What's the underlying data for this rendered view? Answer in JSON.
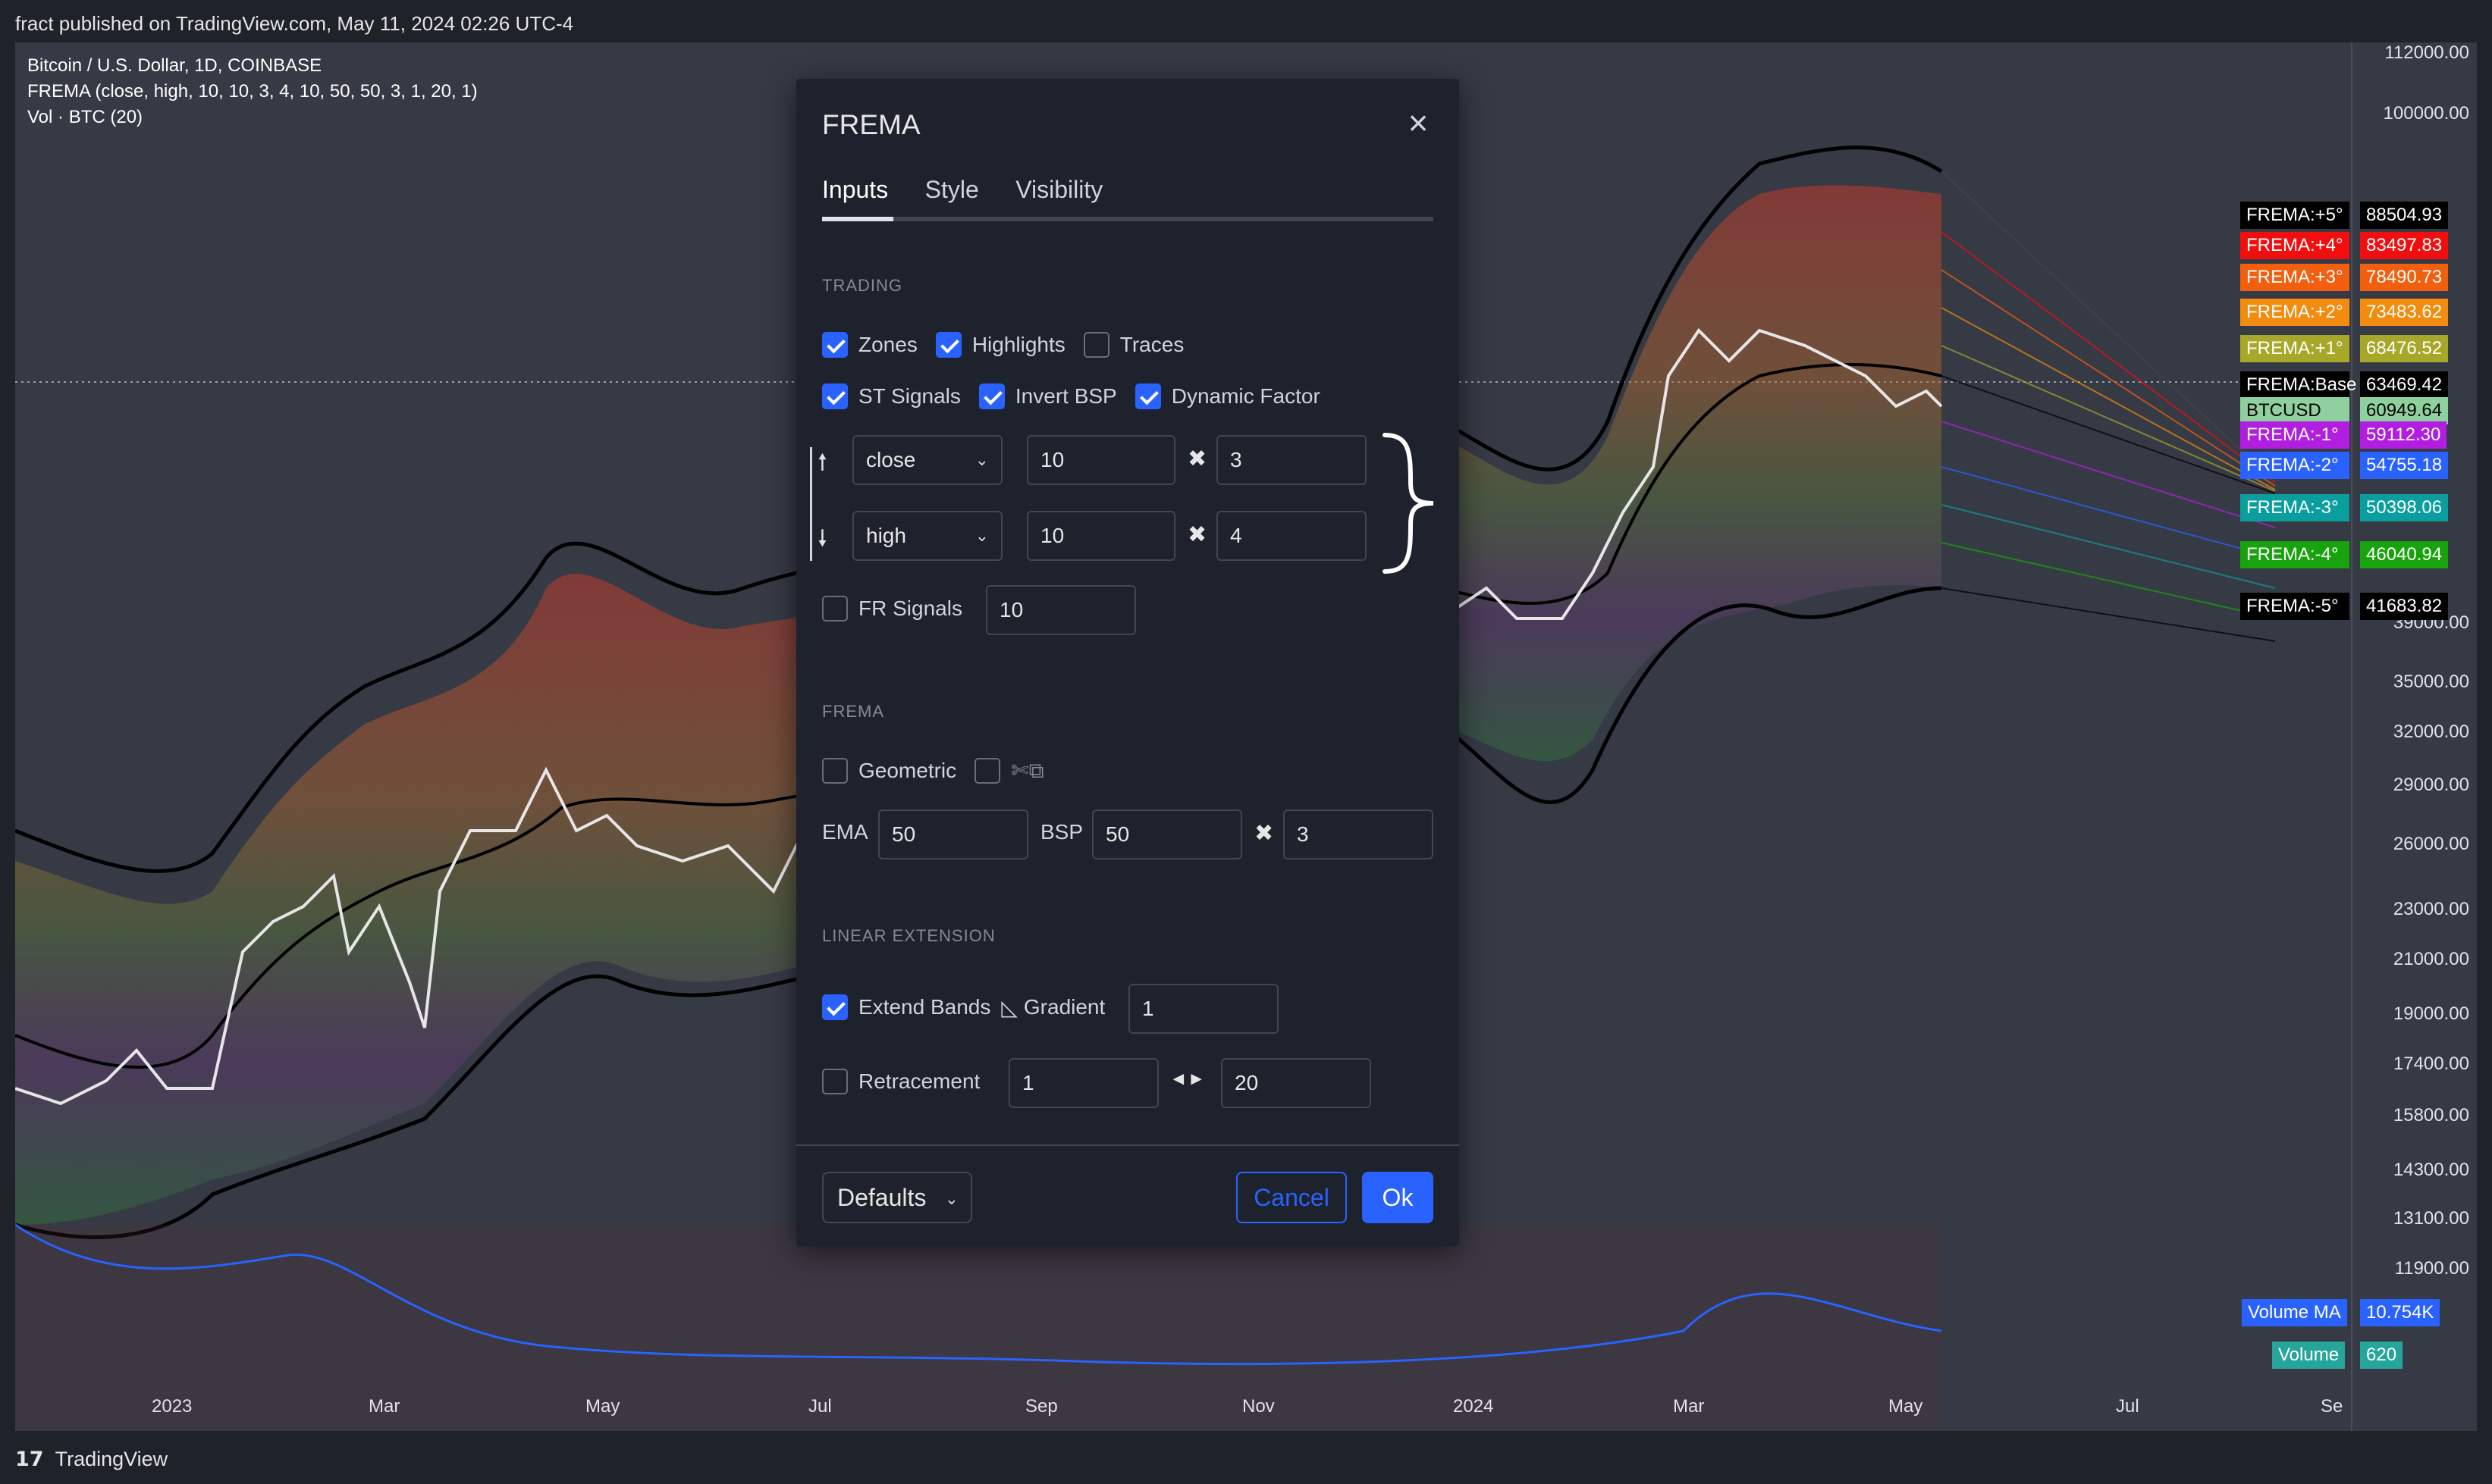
{
  "header": {
    "published": "fract published on TradingView.com, May 11, 2024 02:26 UTC-4"
  },
  "footer": {
    "brand": "TradingView",
    "logo_glyph": "17"
  },
  "legend": {
    "line1": "Bitcoin / U.S. Dollar, 1D, COINBASE",
    "line2": "FREMA (close, high, 10, 10, 3, 4, 10, 50, 50, 3, 1, 20, 1)",
    "line3": "Vol · BTC (20)"
  },
  "price_axis": [
    "112000.00",
    "100000.00",
    "39000.00",
    "35000.00",
    "32000.00",
    "29000.00",
    "26000.00",
    "23000.00",
    "21000.00",
    "19000.00",
    "17400.00",
    "15800.00",
    "14300.00",
    "13100.00",
    "11900.00"
  ],
  "tags": [
    {
      "name": "FREMA:+5°",
      "value": "88504.93",
      "bg": "#000000",
      "fg": "#ffffff",
      "bgv": "#000000",
      "fgv": "#ffffff"
    },
    {
      "name": "FREMA:+4°",
      "value": "83497.83",
      "bg": "#f20e0e",
      "fg": "#ffffff",
      "bgv": "#f20e0e",
      "fgv": "#ffffff"
    },
    {
      "name": "FREMA:+3°",
      "value": "78490.73",
      "bg": "#f25f0e",
      "fg": "#ffffff",
      "bgv": "#f25f0e",
      "fgv": "#ffffff"
    },
    {
      "name": "FREMA:+2°",
      "value": "73483.62",
      "bg": "#f28c0e",
      "fg": "#ffffff",
      "bgv": "#f28c0e",
      "fgv": "#ffffff"
    },
    {
      "name": "FREMA:+1°",
      "value": "68476.52",
      "bg": "#a7a82a",
      "fg": "#ffffff",
      "bgv": "#a7a82a",
      "fgv": "#ffffff"
    },
    {
      "name": "FREMA:Base",
      "value": "63469.42",
      "bg": "#000000",
      "fg": "#ffffff",
      "bgv": "#000000",
      "fgv": "#ffffff"
    },
    {
      "name": "BTCUSD",
      "value": "60949.64",
      "bg": "#8fd19e",
      "fg": "#000000",
      "bgv": "#8fd19e",
      "fgv": "#000000"
    },
    {
      "name": "FREMA:-1°",
      "value": "59112.30",
      "bg": "#b21ee0",
      "fg": "#ffffff",
      "bgv": "#b21ee0",
      "fgv": "#ffffff"
    },
    {
      "name": "FREMA:-2°",
      "value": "54755.18",
      "bg": "#2962ff",
      "fg": "#ffffff",
      "bgv": "#2962ff",
      "fgv": "#ffffff"
    },
    {
      "name": "FREMA:-3°",
      "value": "50398.06",
      "bg": "#0a9e9e",
      "fg": "#ffffff",
      "bgv": "#0a9e9e",
      "fgv": "#ffffff"
    },
    {
      "name": "FREMA:-4°",
      "value": "46040.94",
      "bg": "#16a30b",
      "fg": "#ffffff",
      "bgv": "#16a30b",
      "fgv": "#ffffff"
    },
    {
      "name": "FREMA:-5°",
      "value": "41683.82",
      "bg": "#000000",
      "fg": "#ffffff",
      "bgv": "#000000",
      "fgv": "#ffffff"
    },
    {
      "name": "Volume MA",
      "value": "10.754K",
      "bg": "#2962ff",
      "fg": "#ffffff",
      "bgv": "#2962ff",
      "fgv": "#ffffff"
    },
    {
      "name": "Volume",
      "value": "620",
      "bg": "#26a69a",
      "fg": "#ffffff",
      "bgv": "#26a69a",
      "fgv": "#ffffff"
    }
  ],
  "time_axis": [
    "2023",
    "Mar",
    "May",
    "Jul",
    "Sep",
    "Nov",
    "2024",
    "Mar",
    "May",
    "Jul",
    "Se"
  ],
  "dialog": {
    "title": "FREMA",
    "tabs": [
      "Inputs",
      "Style",
      "Visibility"
    ],
    "sections": {
      "trading": "TRADING",
      "frema": "FREMA",
      "linear": "LINEAR EXTENSION"
    },
    "checks": {
      "zones": "Zones",
      "highlights": "Highlights",
      "traces": "Traces",
      "st_signals": "ST Signals",
      "invert_bsp": "Invert BSP",
      "dynamic_factor": "Dynamic Factor",
      "fr_signals": "FR Signals",
      "geometric": "Geometric",
      "scissors_glyph": "✄⧉",
      "extend_bands": "Extend Bands",
      "retracement": "Retracement"
    },
    "labels": {
      "ema": "EMA",
      "bsp": "BSP",
      "gradient": "Gradient",
      "up_arrow": "🠕",
      "down_arrow": "🠗",
      "times": "✖",
      "gradient_glyph": "◺",
      "lr_glyph": "◄►"
    },
    "fields": {
      "up_source": "close",
      "up_len": "10",
      "up_mult": "3",
      "dn_source": "high",
      "dn_len": "10",
      "dn_mult": "4",
      "fr_len": "10",
      "ema": "50",
      "bsp": "50",
      "bsp_mult": "3",
      "gradient": "1",
      "ret_a": "1",
      "ret_b": "20"
    },
    "buttons": {
      "defaults": "Defaults",
      "cancel": "Cancel",
      "ok": "Ok"
    }
  },
  "colors": {
    "accent": "#2962ff",
    "chart_bg": "#363a45",
    "dialog_bg": "#1e222d"
  }
}
